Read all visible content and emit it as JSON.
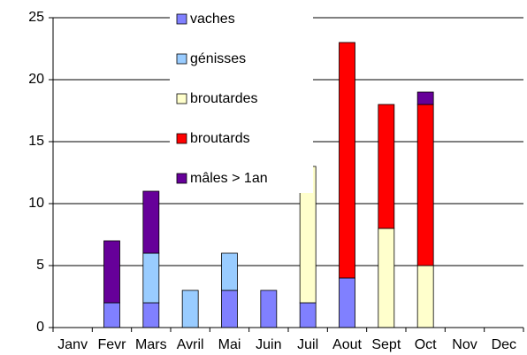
{
  "chart_data": {
    "type": "stacked_bar",
    "categories": [
      "Janv",
      "Fevr",
      "Mars",
      "Avril",
      "Mai",
      "Juin",
      "Juil",
      "Aout",
      "Sept",
      "Oct",
      "Nov",
      "Dec"
    ],
    "series": [
      {
        "name": "vaches",
        "color": "#8080ff",
        "values": [
          0,
          2,
          2,
          0,
          3,
          3,
          2,
          4,
          0,
          0,
          0,
          0
        ]
      },
      {
        "name": "génisses",
        "color": "#99ccff",
        "values": [
          0,
          0,
          4,
          3,
          3,
          0,
          0,
          0,
          0,
          0,
          0,
          0
        ]
      },
      {
        "name": "broutardes",
        "color": "#ffffcc",
        "values": [
          0,
          0,
          0,
          0,
          0,
          0,
          11,
          0,
          8,
          5,
          0,
          0
        ]
      },
      {
        "name": "broutards",
        "color": "#ff0000",
        "values": [
          0,
          0,
          0,
          0,
          0,
          0,
          0,
          19,
          10,
          13,
          0,
          0
        ]
      },
      {
        "name": "mâles > 1an",
        "color": "#660099",
        "values": [
          0,
          5,
          5,
          0,
          0,
          0,
          0,
          0,
          0,
          1,
          0,
          0
        ]
      }
    ],
    "ylim": [
      0,
      25
    ],
    "yticks": [
      0,
      5,
      10,
      15,
      20,
      25
    ],
    "grid": true
  }
}
